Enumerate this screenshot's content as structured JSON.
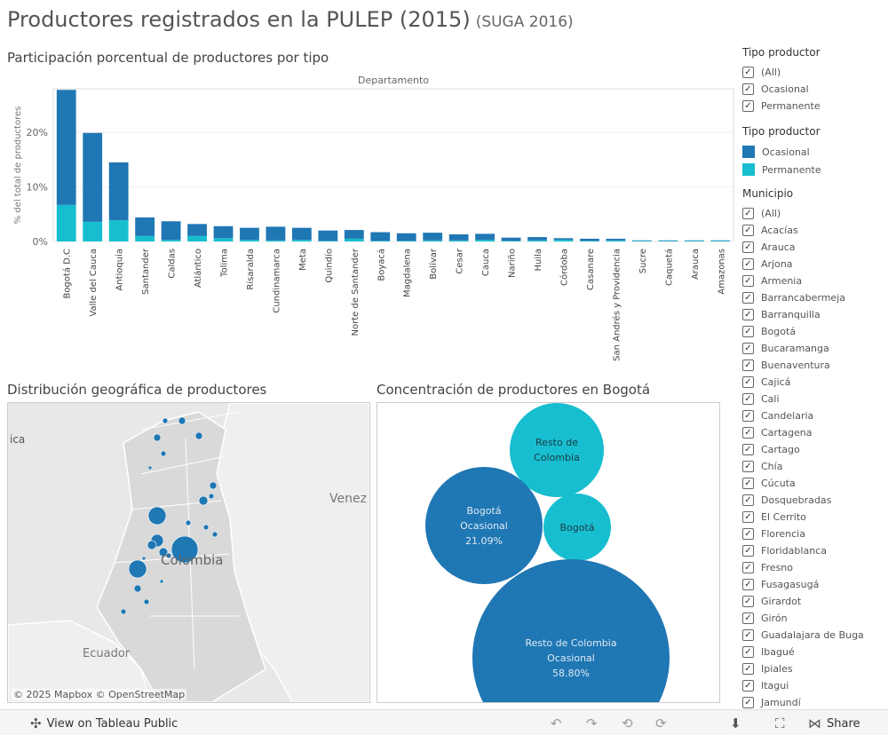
{
  "header": {
    "title": "Productores registrados en la PULEP (2015)",
    "subtitle": "(SUGA 2016)"
  },
  "sections": {
    "bar": "Participación porcentual de productores por tipo",
    "map": "Distribución geográfica de productores",
    "bubble": "Concentración de productores en Bogotá"
  },
  "colors": {
    "ocasional": "#1f77b4",
    "permanente": "#17becf"
  },
  "chart_data": {
    "type": "bar",
    "stacked": true,
    "header_label": "Departamento",
    "ylabel": "% del total de productores",
    "yticks": [
      "0%",
      "10%",
      "20%"
    ],
    "ylim": [
      0,
      28
    ],
    "categories": [
      "Bogotá D.C",
      "Valle del Cauca",
      "Antioquia",
      "Santander",
      "Caldas",
      "Atlántico",
      "Tolima",
      "Risaralda",
      "Cundinamarca",
      "Meta",
      "Quindío",
      "Norte de Santander",
      "Boyacá",
      "Magdalena",
      "Bolívar",
      "Cesar",
      "Cauca",
      "Nariño",
      "Huila",
      "Córdoba",
      "Casanare",
      "San Andrés y Providencia",
      "Sucre",
      "Caquetá",
      "Arauca",
      "Amazonas"
    ],
    "series": [
      {
        "name": "Ocasional",
        "values": [
          21.1,
          16.3,
          10.6,
          3.4,
          3.4,
          2.2,
          2.2,
          2.2,
          2.5,
          2.2,
          1.9,
          1.6,
          1.6,
          1.4,
          1.4,
          1.1,
          1.1,
          0.6,
          0.6,
          0.3,
          0.4,
          0.3,
          0.1,
          0.1,
          0.1,
          0.1
        ]
      },
      {
        "name": "Permanente",
        "values": [
          6.7,
          3.6,
          3.9,
          1.0,
          0.3,
          1.0,
          0.6,
          0.3,
          0.2,
          0.3,
          0.1,
          0.5,
          0.1,
          0.1,
          0.2,
          0.2,
          0.3,
          0.1,
          0.2,
          0.3,
          0.1,
          0.2,
          0.1,
          0.1,
          0.1,
          0.1
        ]
      }
    ]
  },
  "filters": {
    "tipo1_title": "Tipo productor",
    "tipo1_items": [
      "(All)",
      "Ocasional",
      "Permanente"
    ],
    "legend_title": "Tipo productor",
    "legend_items": [
      "Ocasional",
      "Permanente"
    ],
    "municipio_title": "Municipio",
    "municipio_items": [
      "(All)",
      "Acacías",
      "Arauca",
      "Arjona",
      "Armenia",
      "Barrancabermeja",
      "Barranquilla",
      "Bogotá",
      "Bucaramanga",
      "Buenaventura",
      "Cajicá",
      "Cali",
      "Candelaria",
      "Cartagena",
      "Cartago",
      "Chía",
      "Cúcuta",
      "Dosquebradas",
      "El Cerrito",
      "Florencia",
      "Floridablanca",
      "Fresno",
      "Fusagasugá",
      "Girardot",
      "Girón",
      "Guadalajara de Buga",
      "Ibagué",
      "Ipiales",
      "Itagui",
      "Jamundí"
    ],
    "check_glyph": "✓"
  },
  "map": {
    "labels": {
      "colombia": "Colombia",
      "venezuela": "Venez",
      "ecuador": "Ecuador",
      "ica": "ica"
    },
    "credits": "© 2025 Mapbox  © OpenStreetMap"
  },
  "bubbles": [
    {
      "line1": "Resto de",
      "line2": "Colombia",
      "line3": "",
      "tone": "light"
    },
    {
      "line1": "Bogotá",
      "line2": "Ocasional",
      "line3": "21.09%",
      "tone": "dark"
    },
    {
      "line1": "Bogotá",
      "line2": "",
      "line3": "",
      "tone": "light"
    },
    {
      "line1": "Resto de Colombia",
      "line2": "Ocasional",
      "line3": "58.80%",
      "tone": "dark"
    }
  ],
  "toolbar": {
    "view_label": "View on Tableau Public",
    "share_label": "Share",
    "icons": {
      "tableau": "✣",
      "undo": "↶",
      "redo": "↷",
      "revert": "⟲",
      "refresh": "⟳",
      "download": "⬇",
      "fullscreen": "⛶",
      "share": "⋈"
    }
  }
}
